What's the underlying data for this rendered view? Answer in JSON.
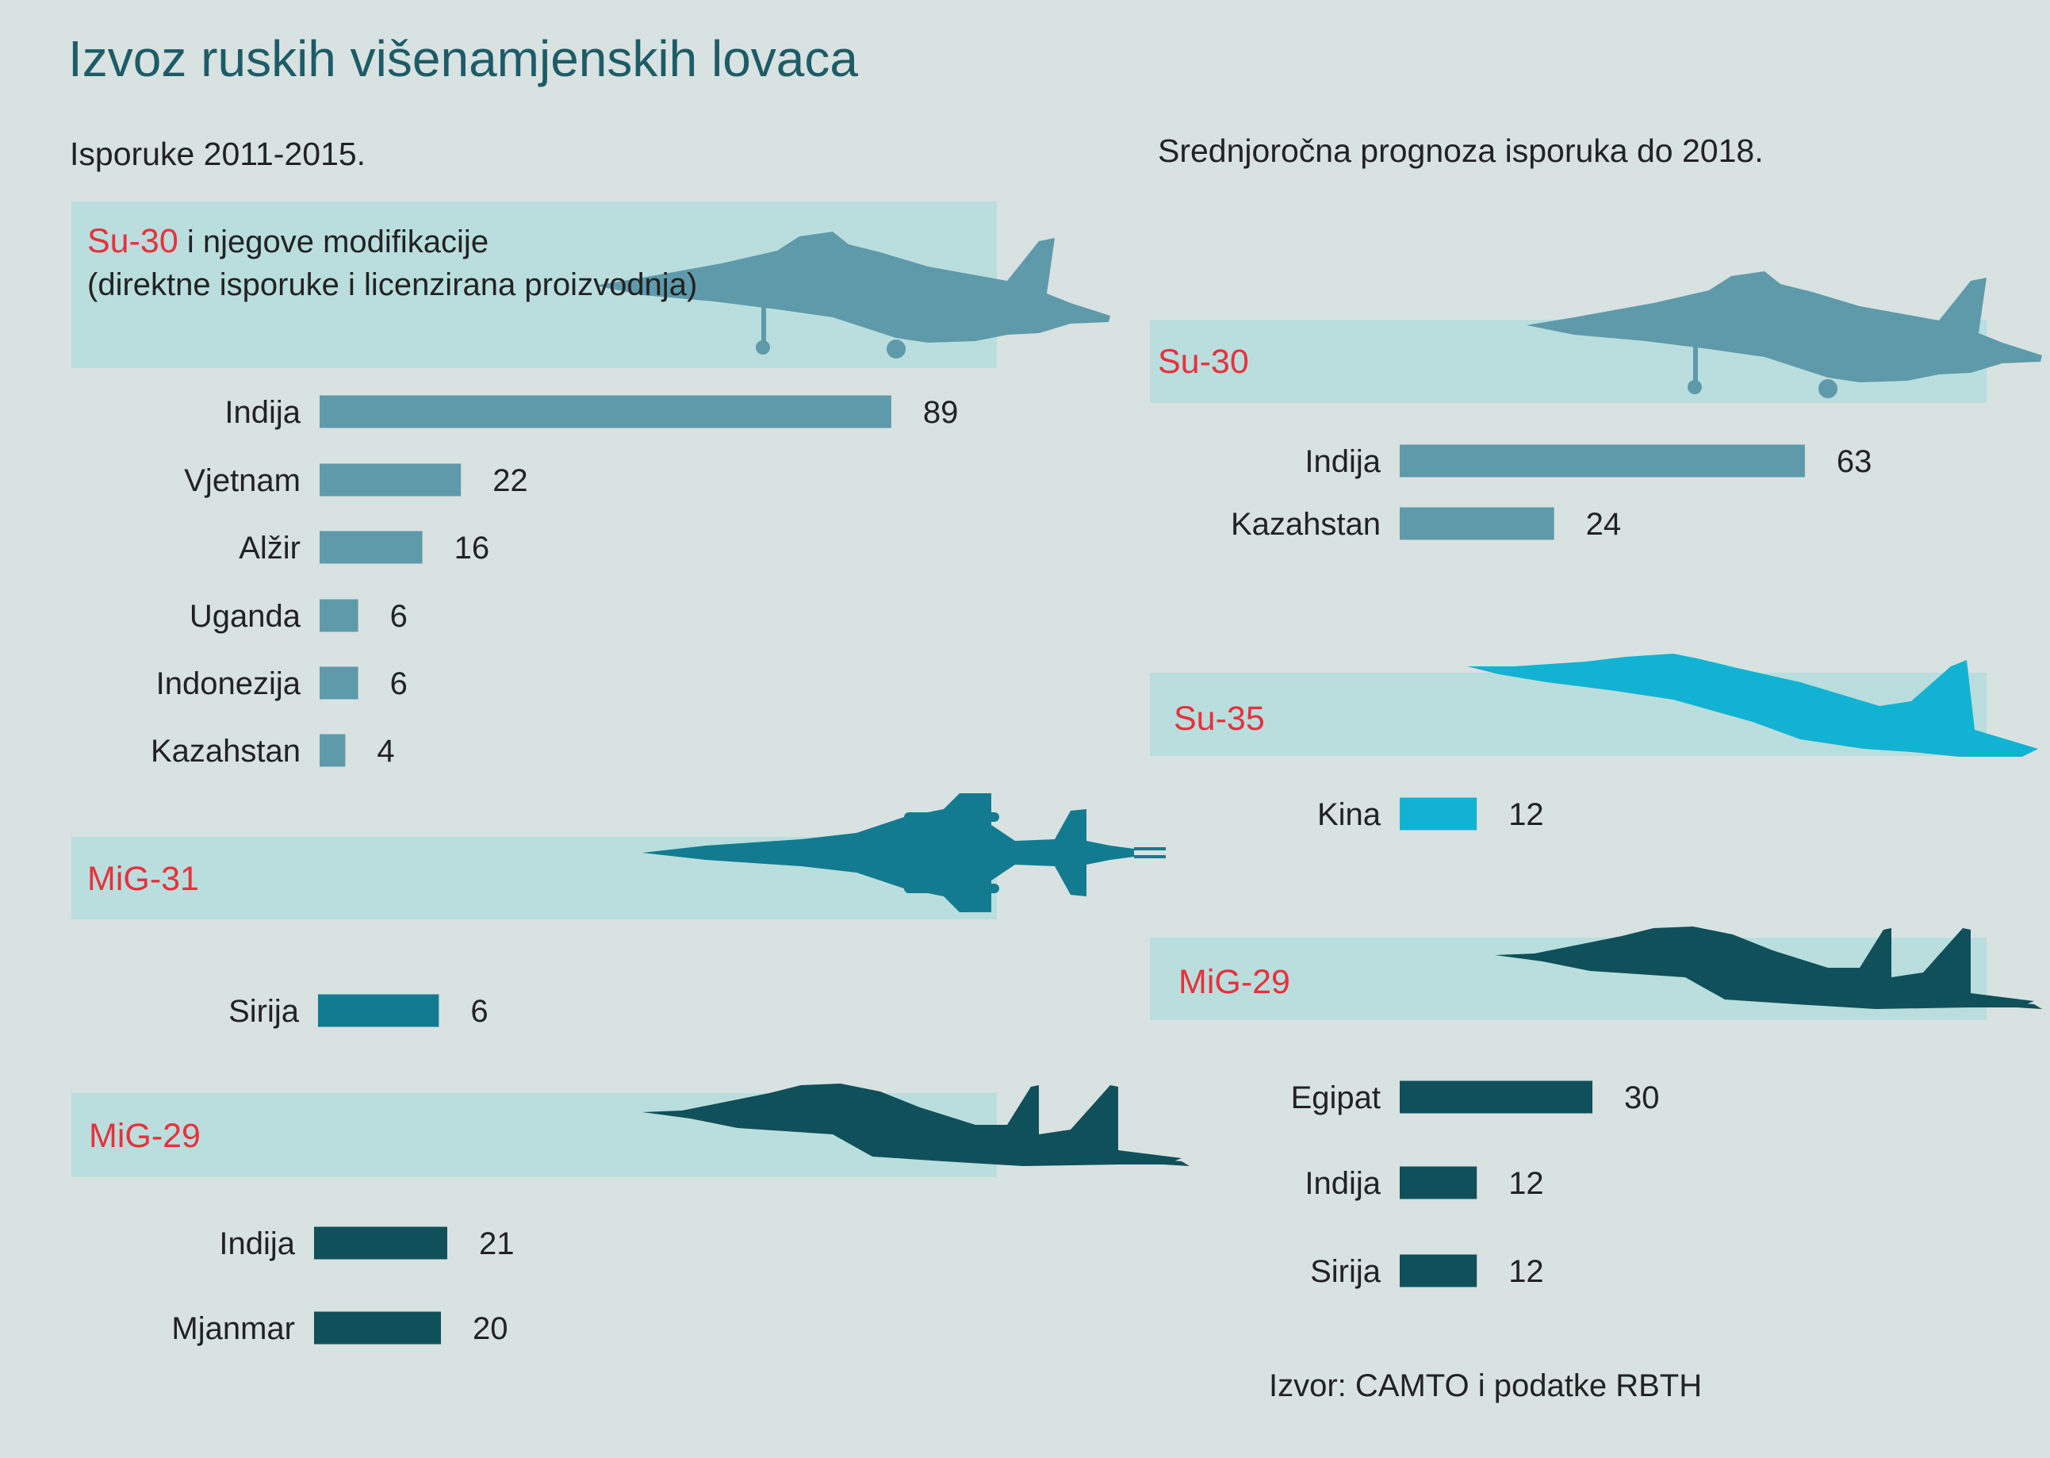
{
  "title": "Izvoz ruskih višenamjenskih lovaca",
  "source": "Izvor: CAMTO i podatke RBTH",
  "colors": {
    "background": "#d8e2e1",
    "band": "#b9dedd",
    "label_red": "#e8313c",
    "su30": "#5f9aab",
    "mig31": "#137b90",
    "mig29": "#10505a",
    "su35": "#12b3d2"
  },
  "left": {
    "subtitle": "Isporuke 2011-2015.",
    "sections": [
      {
        "label": "Su-30",
        "desc_line1": " i njegove modifikacije",
        "desc_line2": "(direktne isporuke i licenzirana proizvodnja)",
        "icon": "su30-jet-icon"
      },
      {
        "label": "MiG-31",
        "icon": "mig31-jet-icon"
      },
      {
        "label": "MiG-29",
        "icon": "mig29-jet-icon"
      }
    ]
  },
  "right": {
    "subtitle": "Srednjoročna prognoza isporuka do 2018.",
    "sections": [
      {
        "label": "Su-30",
        "icon": "su30-jet-icon"
      },
      {
        "label": "Su-35",
        "icon": "su35-jet-icon"
      },
      {
        "label": "MiG-29",
        "icon": "mig29-jet-icon"
      }
    ]
  },
  "chart_data": [
    {
      "type": "bar",
      "orientation": "horizontal",
      "group": "Isporuke 2011-2015.",
      "aircraft": "Su-30",
      "categories": [
        "Indija",
        "Vjetnam",
        "Alžir",
        "Uganda",
        "Indonezija",
        "Kazahstan"
      ],
      "values": [
        89,
        22,
        16,
        6,
        6,
        4
      ]
    },
    {
      "type": "bar",
      "orientation": "horizontal",
      "group": "Isporuke 2011-2015.",
      "aircraft": "MiG-31",
      "categories": [
        "Sirija"
      ],
      "values": [
        6
      ]
    },
    {
      "type": "bar",
      "orientation": "horizontal",
      "group": "Isporuke 2011-2015.",
      "aircraft": "MiG-29",
      "categories": [
        "Indija",
        "Mjanmar"
      ],
      "values": [
        21,
        20
      ]
    },
    {
      "type": "bar",
      "orientation": "horizontal",
      "group": "Srednjoročna prognoza isporuka do 2018.",
      "aircraft": "Su-30",
      "categories": [
        "Indija",
        "Kazahstan"
      ],
      "values": [
        63,
        24
      ]
    },
    {
      "type": "bar",
      "orientation": "horizontal",
      "group": "Srednjoročna prognoza isporuka do 2018.",
      "aircraft": "Su-35",
      "categories": [
        "Kina"
      ],
      "values": [
        12
      ]
    },
    {
      "type": "bar",
      "orientation": "horizontal",
      "group": "Srednjoročna prognoza isporuka do 2018.",
      "aircraft": "MiG-29",
      "categories": [
        "Egipat",
        "Indija",
        "Sirija"
      ],
      "values": [
        30,
        12,
        12
      ]
    }
  ]
}
